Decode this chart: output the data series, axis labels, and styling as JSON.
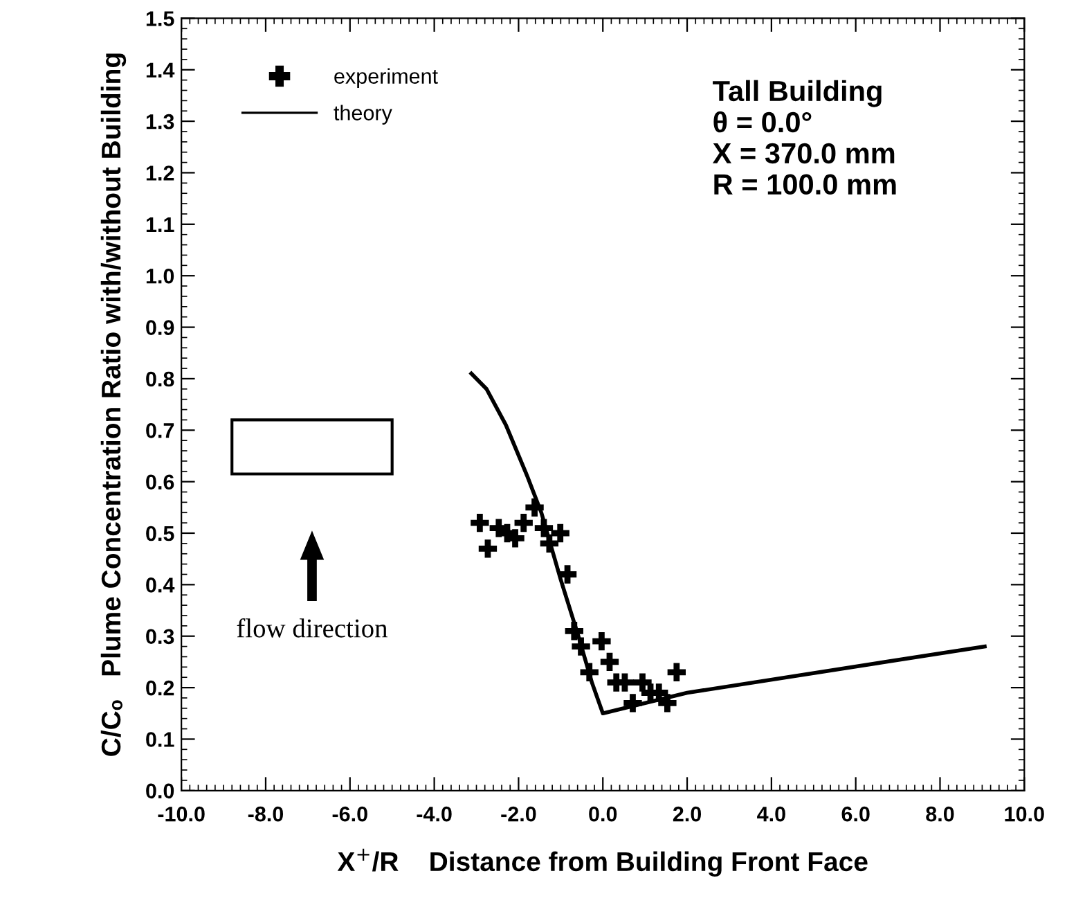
{
  "chart_data": {
    "type": "scatter",
    "xlabel": "X$^{+}$/R    Distance from Building Front Face",
    "ylabel": "C/Cₒ   Plume Concentration Ratio with/without Building",
    "xlim": [
      -10,
      10
    ],
    "ylim": [
      0,
      1.5
    ],
    "xticks": [
      {
        "value": -10,
        "label": "-10.0"
      },
      {
        "value": -8,
        "label": "-8.0"
      },
      {
        "value": -6,
        "label": "-6.0"
      },
      {
        "value": -4,
        "label": "-4.0"
      },
      {
        "value": -2,
        "label": "-2.0"
      },
      {
        "value": 0,
        "label": "0.0"
      },
      {
        "value": 2,
        "label": "2.0"
      },
      {
        "value": 4,
        "label": "4.0"
      },
      {
        "value": 6,
        "label": "6.0"
      },
      {
        "value": 8,
        "label": "8.0"
      },
      {
        "value": 10,
        "label": "10.0"
      }
    ],
    "yticks": [
      {
        "value": 0,
        "label": "0.0"
      },
      {
        "value": 0.1,
        "label": "0.1"
      },
      {
        "value": 0.2,
        "label": "0.2"
      },
      {
        "value": 0.3,
        "label": "0.3"
      },
      {
        "value": 0.4,
        "label": "0.4"
      },
      {
        "value": 0.5,
        "label": "0.5"
      },
      {
        "value": 0.6,
        "label": "0.6"
      },
      {
        "value": 0.7,
        "label": "0.7"
      },
      {
        "value": 0.8,
        "label": "0.8"
      },
      {
        "value": 0.9,
        "label": "0.9"
      },
      {
        "value": 1.0,
        "label": "1.0"
      },
      {
        "value": 1.1,
        "label": "1.1"
      },
      {
        "value": 1.2,
        "label": "1.2"
      },
      {
        "value": 1.3,
        "label": "1.3"
      },
      {
        "value": 1.4,
        "label": "1.4"
      },
      {
        "value": 1.5,
        "label": "1.5"
      }
    ],
    "grid": false,
    "legend": "top left",
    "series": [
      {
        "name": "experiment",
        "marker": "cross",
        "color": "#000000",
        "x": [
          -2.92,
          -2.73,
          -2.47,
          -2.27,
          -2.08,
          -1.88,
          -1.62,
          -1.4,
          -1.27,
          -1.01,
          -0.84,
          -0.68,
          -0.52,
          -0.32,
          -0.03,
          0.16,
          0.32,
          0.52,
          0.71,
          0.94,
          1.13,
          1.33,
          1.53,
          1.75
        ],
        "values": [
          0.52,
          0.47,
          0.51,
          0.5,
          0.49,
          0.52,
          0.55,
          0.51,
          0.48,
          0.5,
          0.42,
          0.31,
          0.28,
          0.23,
          0.29,
          0.25,
          0.21,
          0.21,
          0.17,
          0.21,
          0.19,
          0.19,
          0.17,
          0.23
        ]
      },
      {
        "name": "theory",
        "type": "line",
        "line_style": "solid",
        "color": "#000000",
        "x": [
          -3.12,
          -2.76,
          -2.3,
          -1.79,
          -1.46,
          -1.0,
          -0.58,
          -0.26,
          0.0,
          2.0,
          9.06
        ],
        "values": [
          0.81,
          0.78,
          0.71,
          0.61,
          0.54,
          0.41,
          0.3,
          0.21,
          0.15,
          0.19,
          0.28
        ]
      }
    ],
    "annotations": [
      "Tall Building",
      "θ = 0.0°",
      "X = 370.0 mm",
      "R = 100.0 mm",
      "flow direction"
    ]
  }
}
